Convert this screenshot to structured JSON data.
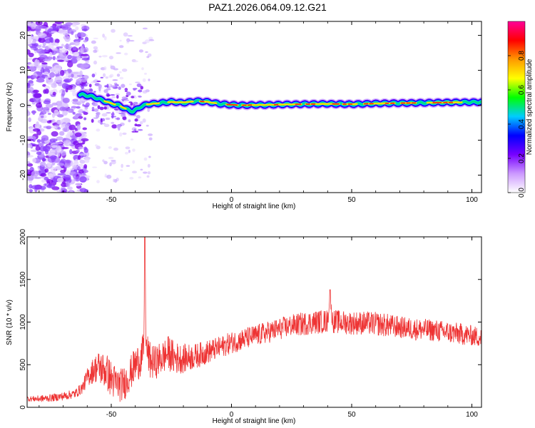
{
  "title": "PAZ1.2026.064.09.12.G21",
  "chart_data": [
    {
      "type": "heatmap",
      "title": "PAZ1.2026.064.09.12.G21",
      "xlabel": "Height of straight line (km)",
      "ylabel": "Frequency (Hz)",
      "xlim": [
        -85,
        104
      ],
      "ylim": [
        -25,
        24
      ],
      "xticks": [
        -50,
        0,
        50,
        100
      ],
      "yticks": [
        -20,
        -10,
        0,
        10,
        20
      ],
      "xtick_labels": [
        "-50",
        "0",
        "50",
        "100"
      ],
      "ytick_labels": [
        "-20",
        "-10",
        "0",
        "10",
        "20"
      ],
      "ridge": {
        "height_km": [
          -62,
          -58,
          -54,
          -50,
          -47,
          -44,
          -41,
          -38,
          -35,
          -30,
          -25,
          -20,
          -15,
          -10,
          -5,
          0,
          5,
          10,
          15,
          20,
          30,
          40,
          50,
          60,
          70,
          80,
          90,
          104
        ],
        "frequency_hz": [
          3.0,
          2.5,
          1.5,
          0.5,
          0.0,
          -1.0,
          -1.8,
          -0.5,
          0.3,
          0.6,
          1.0,
          0.7,
          1.2,
          1.0,
          0.4,
          0.1,
          0.0,
          0.1,
          0.1,
          0.2,
          0.3,
          0.4,
          0.3,
          0.5,
          0.6,
          0.7,
          0.8,
          0.9
        ]
      },
      "colorbar": {
        "label": "Normalized spectral amplitude",
        "range": [
          0,
          1
        ],
        "ticks": [
          0.0,
          0.2,
          0.4,
          0.6,
          0.8
        ],
        "tick_labels": [
          "0.0",
          "0.2",
          "0.4",
          "0.6",
          "0.8"
        ],
        "colors": [
          "#ffffff",
          "#cc99ff",
          "#7700ff",
          "#0000ff",
          "#00ccff",
          "#00ff00",
          "#ffff00",
          "#ff9900",
          "#ff0000",
          "#ff0099"
        ]
      }
    },
    {
      "type": "line",
      "xlabel": "Height of straight line (km)",
      "ylabel": "SNR (10 * v/v)",
      "xlim": [
        -85,
        104
      ],
      "ylim": [
        0,
        2000
      ],
      "xticks": [
        -50,
        0,
        50,
        100
      ],
      "yticks": [
        0,
        500,
        1000,
        1500,
        2000
      ],
      "xtick_labels": [
        "-50",
        "0",
        "50",
        "100"
      ],
      "ytick_labels": [
        "0",
        "500",
        "1000",
        "1500",
        "2000"
      ],
      "color": "#ee3333",
      "series": [
        {
          "name": "SNR",
          "x": [
            -85,
            -80,
            -75,
            -70,
            -65,
            -62,
            -60,
            -57,
            -55,
            -52,
            -50,
            -48,
            -46,
            -44,
            -42,
            -40,
            -38,
            -36.5,
            -36,
            -35.5,
            -34,
            -32,
            -30,
            -28,
            -26,
            -24,
            -20,
            -15,
            -10,
            -5,
            0,
            5,
            10,
            15,
            20,
            25,
            30,
            35,
            40,
            41,
            42,
            45,
            50,
            55,
            60,
            65,
            70,
            75,
            80,
            85,
            90,
            95,
            100,
            104
          ],
          "y": [
            100,
            100,
            110,
            130,
            160,
            230,
            350,
            450,
            470,
            420,
            330,
            280,
            260,
            300,
            400,
            500,
            560,
            650,
            2000,
            700,
            550,
            520,
            560,
            600,
            640,
            580,
            570,
            600,
            650,
            700,
            760,
            800,
            840,
            880,
            920,
            960,
            980,
            1000,
            1010,
            1300,
            1010,
            1000,
            990,
            990,
            980,
            960,
            940,
            920,
            910,
            900,
            880,
            860,
            840,
            820
          ],
          "jitter": [
            30,
            40,
            45,
            50,
            55,
            70,
            110,
            160,
            200,
            220,
            220,
            210,
            200,
            200,
            200,
            210,
            220,
            230,
            0,
            230,
            220,
            200,
            200,
            200,
            210,
            200,
            170,
            150,
            140,
            130,
            130,
            130,
            130,
            130,
            130,
            130,
            140,
            140,
            140,
            0,
            140,
            140,
            140,
            140,
            140,
            140,
            130,
            130,
            130,
            130,
            130,
            130,
            120,
            120
          ]
        }
      ]
    }
  ]
}
